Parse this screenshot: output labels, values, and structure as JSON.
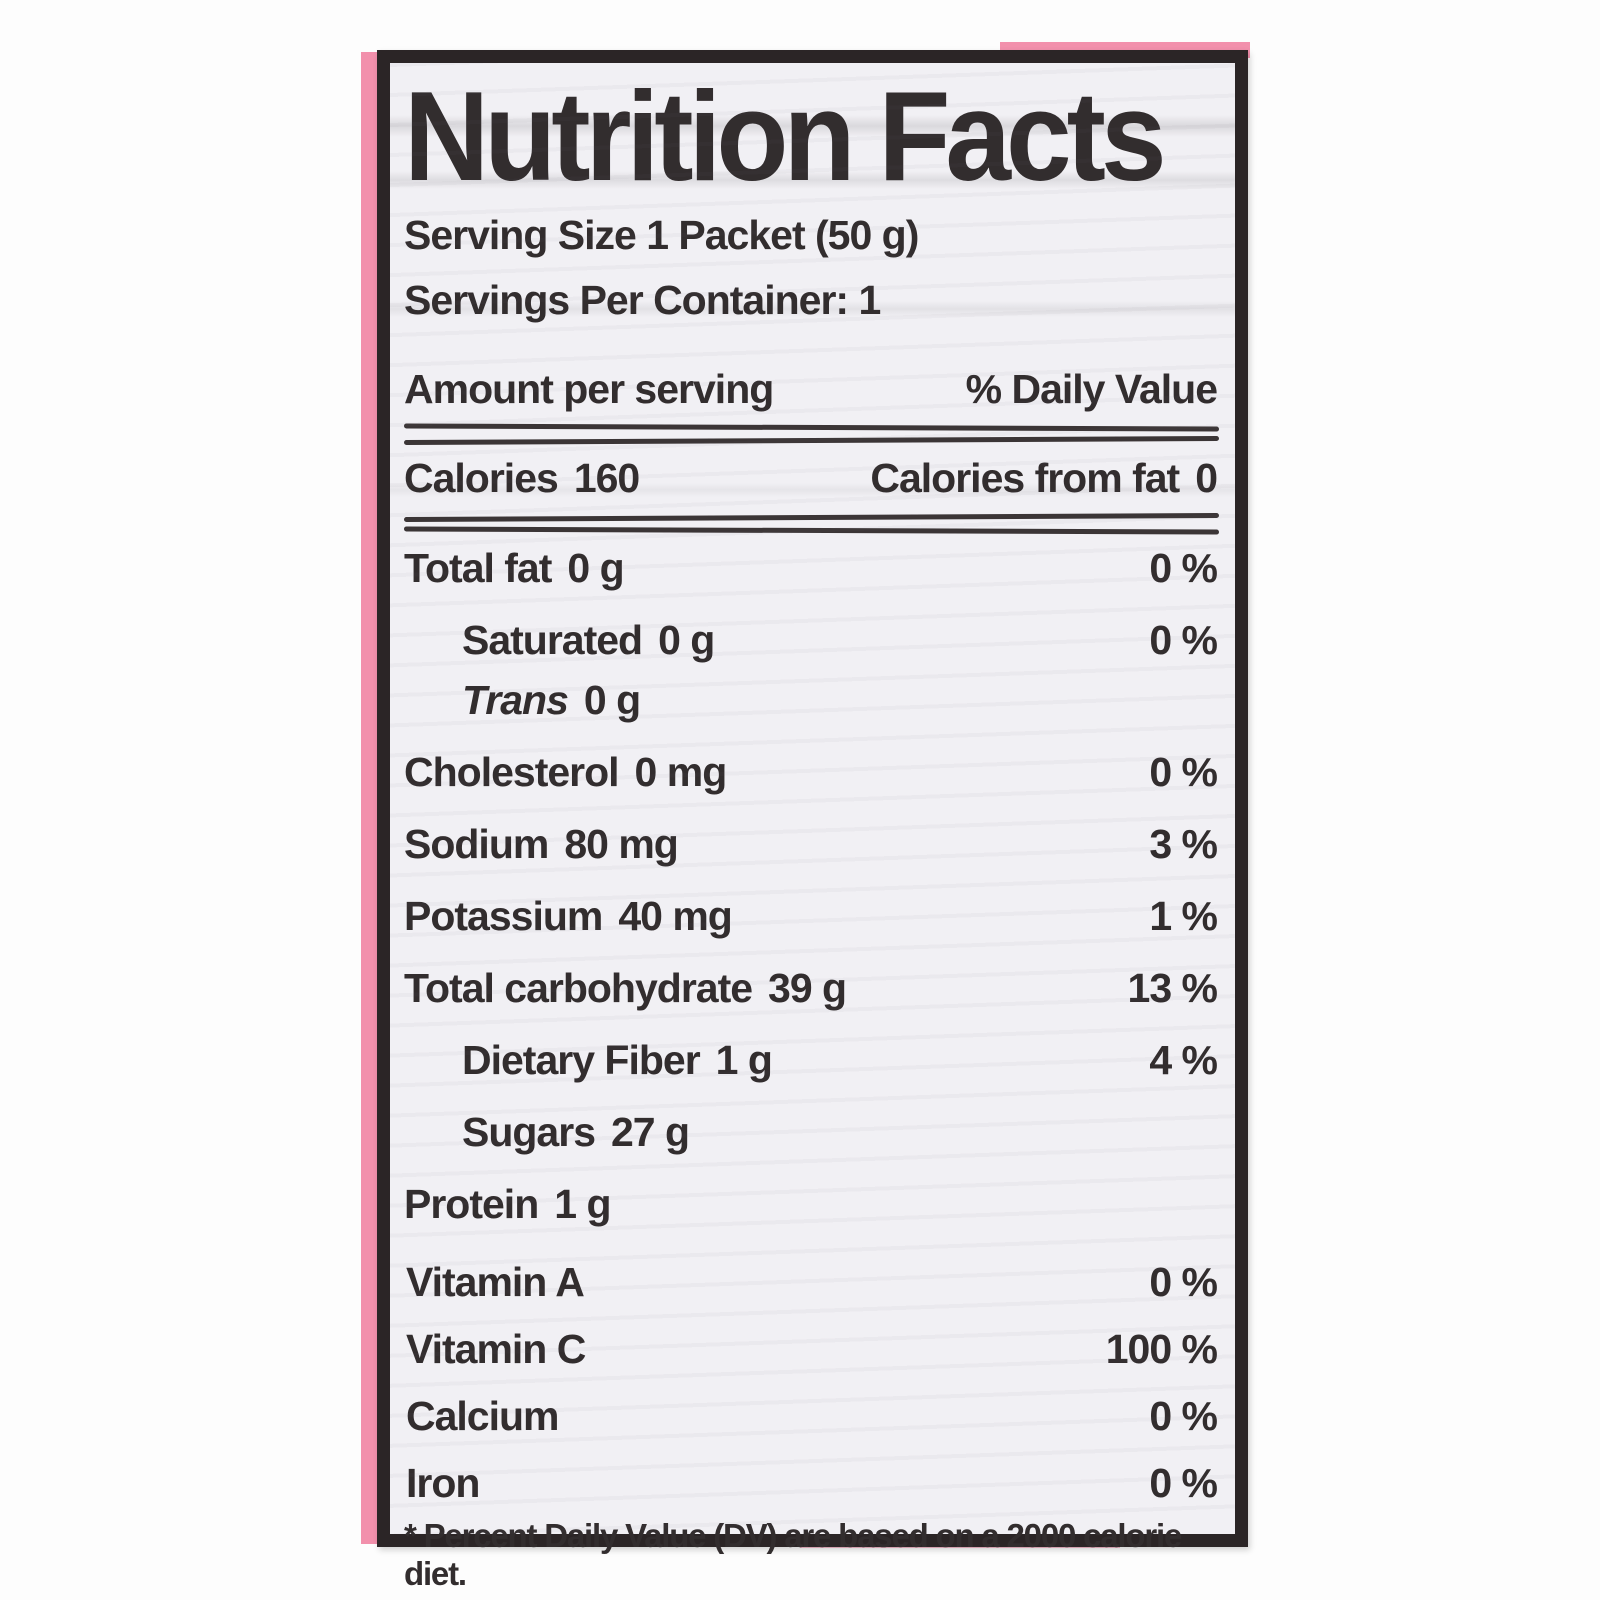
{
  "colors": {
    "accent_pink": "#f290ac",
    "frame_black": "#2b2526",
    "text_ink": "#322d2e",
    "paper": "#f1f0f4"
  },
  "label": {
    "title": "Nutrition Facts",
    "serving_size": "Serving Size 1 Packet (50 g)",
    "servings_per_container": "Servings Per Container: 1",
    "header": {
      "amount": "Amount per serving",
      "daily_value": "% Daily Value"
    },
    "calories": {
      "name": "Calories",
      "value": "160",
      "from_fat_label": "Calories from fat",
      "from_fat_value": "0"
    },
    "rows": [
      {
        "name": "Total fat",
        "amount": "0 g",
        "dv": "0 %"
      },
      {
        "name": "Saturated",
        "amount": "0 g",
        "dv": "0 %"
      },
      {
        "name": "Trans",
        "amount": "0 g",
        "dv": ""
      },
      {
        "name": "Cholesterol",
        "amount": "0 mg",
        "dv": "0 %"
      },
      {
        "name": "Sodium",
        "amount": "80 mg",
        "dv": "3 %"
      },
      {
        "name": "Potassium",
        "amount": "40 mg",
        "dv": "1 %"
      },
      {
        "name": "Total carbohydrate",
        "amount": "39 g",
        "dv": "13 %"
      },
      {
        "name": "Dietary Fiber",
        "amount": "1 g",
        "dv": "4 %"
      },
      {
        "name": "Sugars",
        "amount": "27 g",
        "dv": ""
      },
      {
        "name": "Protein",
        "amount": "1 g",
        "dv": ""
      }
    ],
    "vitamins": [
      {
        "name": "Vitamin A",
        "dv": "0 %"
      },
      {
        "name": "Vitamin C",
        "dv": "100 %"
      },
      {
        "name": "Calcium",
        "dv": "0 %"
      },
      {
        "name": "Iron",
        "dv": "0 %"
      }
    ],
    "footnote": "* Percent Daily Value (DV) are based on a 2000 calorie diet."
  }
}
